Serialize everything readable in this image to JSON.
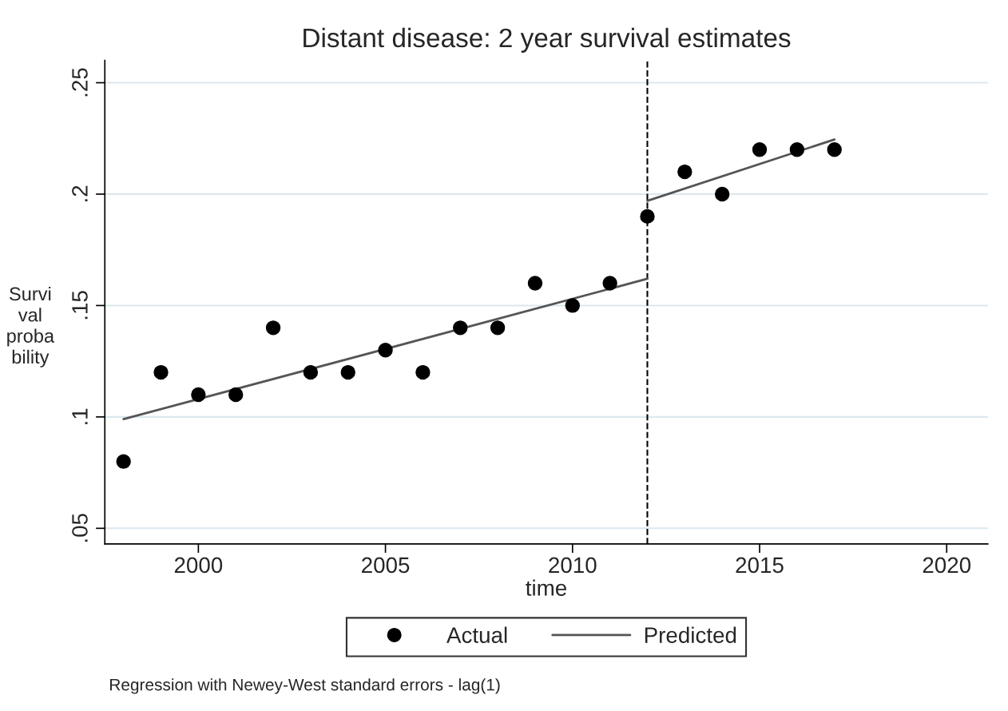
{
  "chart_data": {
    "type": "scatter",
    "title": "Distant disease: 2 year survival estimates",
    "xlabel": "time",
    "ylabel": "Survi val proba bility",
    "series": [
      {
        "name": "Actual",
        "color": "#000000",
        "marker": "circle",
        "x": [
          1998,
          1999,
          2000,
          2001,
          2002,
          2003,
          2004,
          2005,
          2006,
          2007,
          2008,
          2009,
          2010,
          2011,
          2012,
          2013,
          2014,
          2015,
          2016,
          2017
        ],
        "values": [
          0.08,
          0.12,
          0.11,
          0.11,
          0.14,
          0.12,
          0.12,
          0.13,
          0.12,
          0.14,
          0.14,
          0.16,
          0.15,
          0.16,
          0.19,
          0.21,
          0.2,
          0.22,
          0.22,
          0.22
        ]
      },
      {
        "name": "Predicted",
        "type": "line",
        "color": "#555555",
        "x": [
          1998,
          2012
        ],
        "values": [
          0.099,
          0.162
        ]
      },
      {
        "type": "line",
        "color": "#555555",
        "x": [
          2012,
          2017
        ],
        "values": [
          0.197,
          0.2245
        ]
      }
    ],
    "ref_lines": [
      {
        "axis": "x",
        "value": 2012,
        "color": "#000000",
        "line_style": "dashed"
      }
    ],
    "xlim": [
      1997.5,
      2021.1
    ],
    "xticks": [
      2000,
      2005,
      2010,
      2015,
      2020
    ],
    "ylim": [
      0.043,
      0.26
    ],
    "yticks": [
      {
        "value": 0.05,
        "label": ".05"
      },
      {
        "value": 0.1,
        "label": ".1"
      },
      {
        "value": 0.15,
        "label": ".15"
      },
      {
        "value": 0.2,
        "label": ".2"
      },
      {
        "value": 0.25,
        "label": ".25"
      }
    ],
    "grid": "y",
    "legend": "bottom",
    "annotations": [
      "Regression with Newey-West standard errors - lag(1)"
    ]
  }
}
